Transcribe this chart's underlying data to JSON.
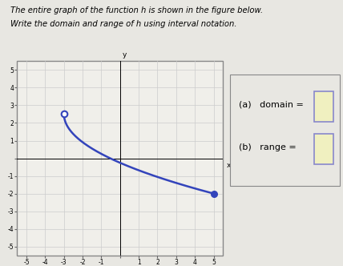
{
  "title_line1": "The entire graph of the function h is shown in the figure below.",
  "title_line2": "Write the domain and range of h using interval notation.",
  "x_start": -3,
  "y_start": 2.5,
  "x_end": 5,
  "y_end": -2,
  "open_at_start": true,
  "closed_at_end": true,
  "xlim": [
    -5.5,
    5.5
  ],
  "ylim": [
    -5.5,
    5.5
  ],
  "curve_color": "#3344bb",
  "dot_color": "#3344bb",
  "grid_color": "#cccccc",
  "graph_bg": "#f0efea",
  "page_bg": "#e8e7e2",
  "border_color": "#888888",
  "label_a": "(a)   domain = ",
  "label_b": "(b)   range = ",
  "box_edge_color": "#8888cc",
  "box_fill_color": "#f0f0c0",
  "right_panel_bg": "#f5f5f0"
}
